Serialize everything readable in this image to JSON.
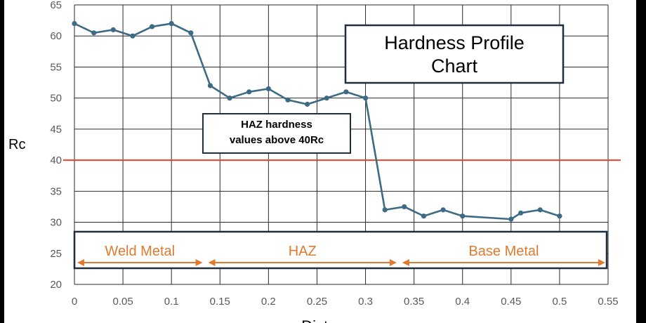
{
  "chart_data": {
    "type": "line",
    "title": "Hardness Profile Chart",
    "title_lines": [
      "Hardness Profile",
      "Chart"
    ],
    "xlabel": "Distance",
    "ylabel": "Rc",
    "xlim": [
      0,
      0.55
    ],
    "ylim": [
      20,
      65
    ],
    "x_ticks": [
      "0",
      "0.05",
      "0.1",
      "0.15",
      "0.2",
      "0.25",
      "0.3",
      "0.35",
      "0.4",
      "0.45",
      "0.5",
      "0.55"
    ],
    "y_ticks": [
      "20",
      "25",
      "30",
      "35",
      "40",
      "45",
      "50",
      "55",
      "60",
      "65"
    ],
    "grid": true,
    "series": [
      {
        "color": "#3d6b86",
        "x": [
          0,
          0.02,
          0.04,
          0.06,
          0.08,
          0.1,
          0.12,
          0.14,
          0.16,
          0.18,
          0.2,
          0.22,
          0.24,
          0.26,
          0.28,
          0.3,
          0.32,
          0.34,
          0.36,
          0.38,
          0.4,
          0.45,
          0.46,
          0.48,
          0.5
        ],
        "y": [
          62,
          60.5,
          61,
          60,
          61.5,
          62,
          60.5,
          52,
          50,
          51,
          51.5,
          49.7,
          49,
          50,
          51,
          50,
          32,
          32.5,
          31,
          32,
          31,
          30.5,
          31.5,
          32,
          31
        ]
      }
    ],
    "reference_line": {
      "y": 40,
      "color": "#e8442a"
    },
    "callout": {
      "lines": [
        "HAZ hardness",
        "values above 40Rc"
      ]
    },
    "zones": [
      {
        "label": "Weld Metal",
        "start": 0,
        "end": 0.135
      },
      {
        "label": "HAZ",
        "start": 0.135,
        "end": 0.335
      },
      {
        "label": "Base Metal",
        "start": 0.335,
        "end": 0.55
      }
    ],
    "zone_color": "#e07a2e"
  }
}
